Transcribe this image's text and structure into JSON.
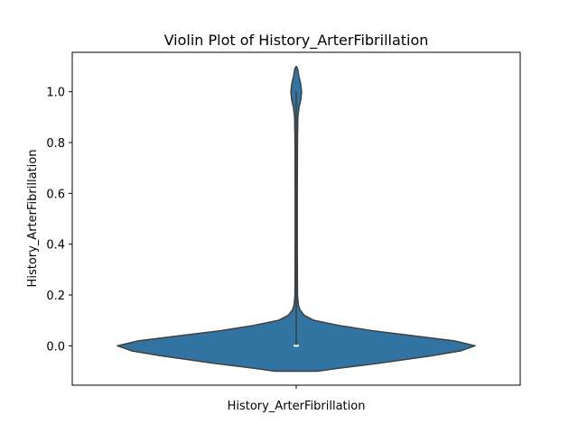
{
  "chart_data": {
    "type": "violin",
    "title": "Violin Plot of History_ArterFibrillation",
    "xlabel": "History_ArterFibrillation",
    "ylabel": "History_ArterFibrillation",
    "ylim": [
      -0.155,
      1.155
    ],
    "yticks": [
      0.0,
      0.2,
      0.4,
      0.6,
      0.8,
      1.0
    ],
    "ytick_labels": [
      "0.0",
      "0.2",
      "0.4",
      "0.6",
      "0.8",
      "1.0"
    ],
    "grid": false,
    "violin": {
      "fill_color": "#3274a1",
      "edge_color": "#3f3f3f",
      "median": 0.0,
      "q1": 0.0,
      "q3": 0.0,
      "min": 0.0,
      "max": 1.0,
      "density_profile": [
        {
          "y": -0.1,
          "half_width": 0.12
        },
        {
          "y": -0.09,
          "half_width": 0.22
        },
        {
          "y": -0.07,
          "half_width": 0.45
        },
        {
          "y": -0.04,
          "half_width": 0.75
        },
        {
          "y": -0.02,
          "half_width": 0.92
        },
        {
          "y": 0.0,
          "half_width": 1.0
        },
        {
          "y": 0.02,
          "half_width": 0.88
        },
        {
          "y": 0.04,
          "half_width": 0.65
        },
        {
          "y": 0.06,
          "half_width": 0.42
        },
        {
          "y": 0.08,
          "half_width": 0.24
        },
        {
          "y": 0.1,
          "half_width": 0.1
        },
        {
          "y": 0.12,
          "half_width": 0.045
        },
        {
          "y": 0.14,
          "half_width": 0.022
        },
        {
          "y": 0.16,
          "half_width": 0.012
        },
        {
          "y": 0.2,
          "half_width": 0.007
        },
        {
          "y": 0.4,
          "half_width": 0.006
        },
        {
          "y": 0.6,
          "half_width": 0.006
        },
        {
          "y": 0.8,
          "half_width": 0.007
        },
        {
          "y": 0.9,
          "half_width": 0.009
        },
        {
          "y": 0.94,
          "half_width": 0.016
        },
        {
          "y": 0.97,
          "half_width": 0.026
        },
        {
          "y": 1.0,
          "half_width": 0.03
        },
        {
          "y": 1.03,
          "half_width": 0.025
        },
        {
          "y": 1.06,
          "half_width": 0.015
        },
        {
          "y": 1.09,
          "half_width": 0.008
        },
        {
          "y": 1.1,
          "half_width": 0.0
        }
      ]
    }
  }
}
